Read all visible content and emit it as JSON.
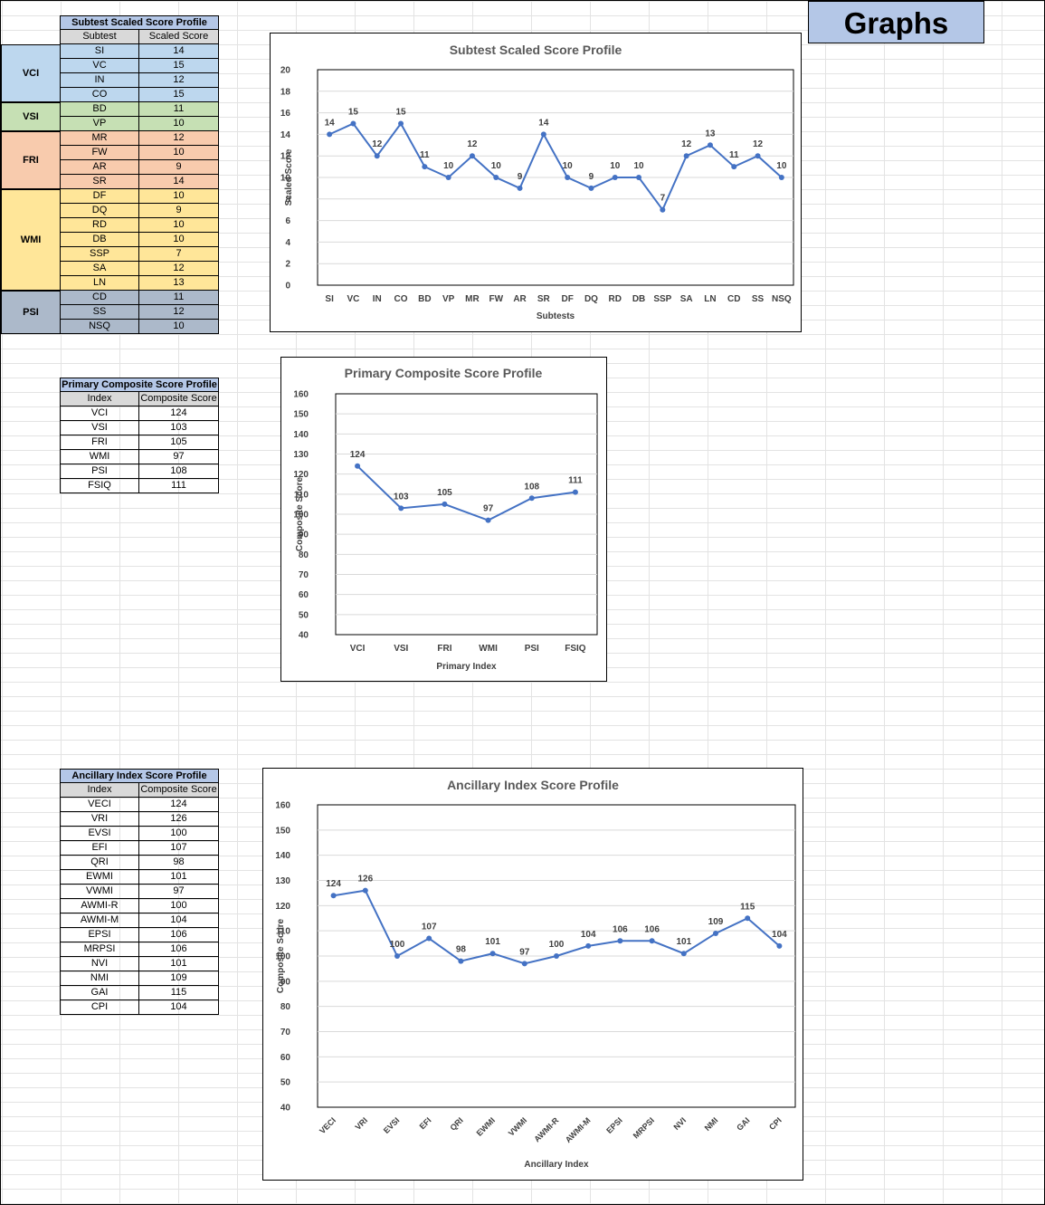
{
  "header": {
    "title": "Graphs"
  },
  "subtest_table": {
    "title": "Subtest Scaled Score Profile",
    "headers": [
      "Subtest",
      "Scaled Score"
    ],
    "groups": [
      {
        "label": "VCI",
        "color": "#bdd7ee",
        "rows": [
          [
            "SI",
            "14"
          ],
          [
            "VC",
            "15"
          ],
          [
            "IN",
            "12"
          ],
          [
            "CO",
            "15"
          ]
        ]
      },
      {
        "label": "VSI",
        "color": "#c6e0b4",
        "rows": [
          [
            "BD",
            "11"
          ],
          [
            "VP",
            "10"
          ]
        ]
      },
      {
        "label": "FRI",
        "color": "#f8cbad",
        "rows": [
          [
            "MR",
            "12"
          ],
          [
            "FW",
            "10"
          ],
          [
            "AR",
            "9"
          ],
          [
            "SR",
            "14"
          ]
        ]
      },
      {
        "label": "WMI",
        "color": "#ffe699",
        "rows": [
          [
            "DF",
            "10"
          ],
          [
            "DQ",
            "9"
          ],
          [
            "RD",
            "10"
          ],
          [
            "DB",
            "10"
          ],
          [
            "SSP",
            "7"
          ],
          [
            "SA",
            "12"
          ],
          [
            "LN",
            "13"
          ]
        ]
      },
      {
        "label": "PSI",
        "color": "#acb9ca",
        "rows": [
          [
            "CD",
            "11"
          ],
          [
            "SS",
            "12"
          ],
          [
            "NSQ",
            "10"
          ]
        ]
      }
    ]
  },
  "primary_table": {
    "title": "Primary Composite Score Profile",
    "headers": [
      "Index",
      "Composite Score"
    ],
    "rows": [
      [
        "VCI",
        "124"
      ],
      [
        "VSI",
        "103"
      ],
      [
        "FRI",
        "105"
      ],
      [
        "WMI",
        "97"
      ],
      [
        "PSI",
        "108"
      ],
      [
        "FSIQ",
        "111"
      ]
    ]
  },
  "ancillary_table": {
    "title": "Ancillary Index Score Profile",
    "headers": [
      "Index",
      "Composite Score"
    ],
    "rows": [
      [
        "VECI",
        "124"
      ],
      [
        "VRI",
        "126"
      ],
      [
        "EVSI",
        "100"
      ],
      [
        "EFI",
        "107"
      ],
      [
        "QRI",
        "98"
      ],
      [
        "EWMI",
        "101"
      ],
      [
        "VWMI",
        "97"
      ],
      [
        "AWMI-R",
        "100"
      ],
      [
        "AWMI-M",
        "104"
      ],
      [
        "EPSI",
        "106"
      ],
      [
        "MRPSI",
        "106"
      ],
      [
        "NVI",
        "101"
      ],
      [
        "NMI",
        "109"
      ],
      [
        "GAI",
        "115"
      ],
      [
        "CPI",
        "104"
      ]
    ]
  },
  "chart_data": [
    {
      "type": "line",
      "title": "Subtest Scaled Score Profile",
      "xlabel": "Subtests",
      "ylabel": "Scaled Score",
      "categories": [
        "SI",
        "VC",
        "IN",
        "CO",
        "BD",
        "VP",
        "MR",
        "FW",
        "AR",
        "SR",
        "DF",
        "DQ",
        "RD",
        "DB",
        "SSP",
        "SA",
        "LN",
        "CD",
        "SS",
        "NSQ"
      ],
      "values": [
        14,
        15,
        12,
        15,
        11,
        10,
        12,
        10,
        9,
        14,
        10,
        9,
        10,
        10,
        7,
        12,
        13,
        11,
        12,
        10
      ],
      "ylim": [
        0,
        20
      ],
      "ytick_step": 2,
      "grid": true,
      "color": "#4472c4"
    },
    {
      "type": "line",
      "title": "Primary Composite Score Profile",
      "xlabel": "Primary Index",
      "ylabel": "Composite Score",
      "categories": [
        "VCI",
        "VSI",
        "FRI",
        "WMI",
        "PSI",
        "FSIQ"
      ],
      "values": [
        124,
        103,
        105,
        97,
        108,
        111
      ],
      "ylim": [
        40,
        160
      ],
      "ytick_step": 10,
      "grid": true,
      "color": "#4472c4"
    },
    {
      "type": "line",
      "title": "Ancillary Index Score Profile",
      "xlabel": "Ancillary Index",
      "ylabel": "Composite Score",
      "categories": [
        "VECI",
        "VRI",
        "EVSI",
        "EFI",
        "QRI",
        "EWMI",
        "VWMI",
        "AWMI-R",
        "AWMI-M",
        "EPSI",
        "MRPSI",
        "NVI",
        "NMI",
        "GAI",
        "CPI"
      ],
      "values": [
        124,
        126,
        100,
        107,
        98,
        101,
        97,
        100,
        104,
        106,
        106,
        101,
        109,
        115,
        104
      ],
      "ylim": [
        40,
        160
      ],
      "ytick_step": 10,
      "grid": true,
      "color": "#4472c4"
    }
  ]
}
